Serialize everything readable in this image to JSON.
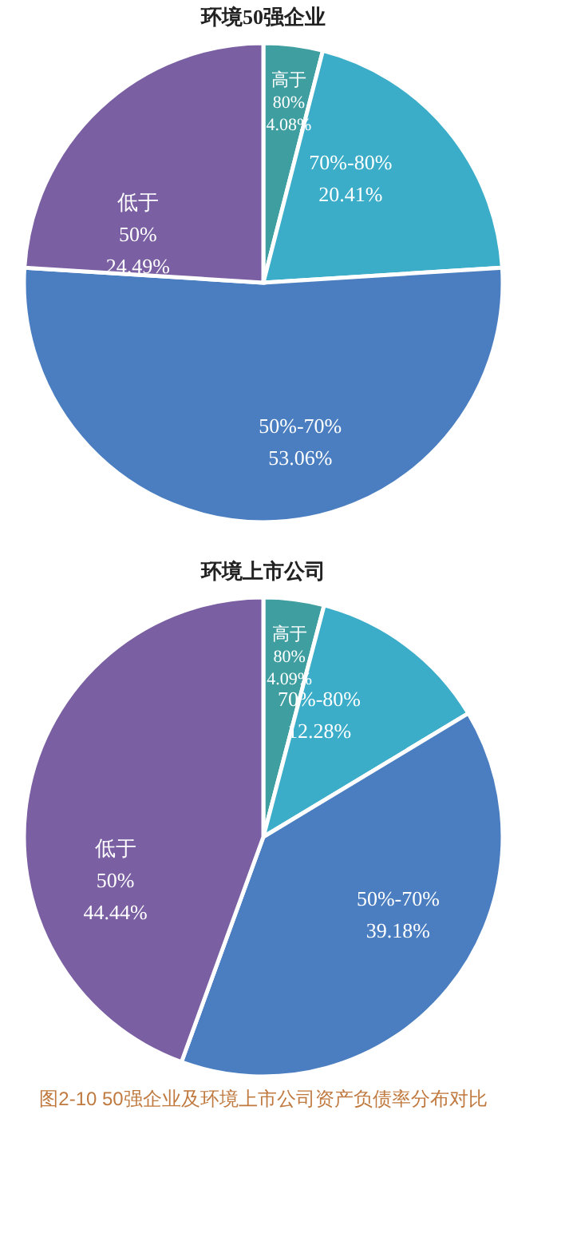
{
  "chart_data": [
    {
      "type": "pie",
      "title": "环境50强企业",
      "categories": [
        "高于80%",
        "70%-80%",
        "50%-70%",
        "低于50%"
      ],
      "values": [
        4.08,
        20.41,
        53.06,
        24.49
      ],
      "value_labels": [
        "4.08%",
        "20.41%",
        "53.06%",
        "24.49%"
      ],
      "colors": [
        "#3f9ea0",
        "#3badc9",
        "#4a7ec1",
        "#7a5fa2"
      ]
    },
    {
      "type": "pie",
      "title": "环境上市公司",
      "categories": [
        "高于80%",
        "70%-80%",
        "50%-70%",
        "低于50%"
      ],
      "values": [
        4.09,
        12.28,
        39.18,
        44.44
      ],
      "value_labels": [
        "4.09%",
        "12.28%",
        "39.18%",
        "44.44%"
      ],
      "colors": [
        "#3f9ea0",
        "#3badc9",
        "#4a7ec1",
        "#7a5fa2"
      ],
      "annotations": [
        "图2-10 50强企业及环境上市公司资产负债率分布对比"
      ]
    }
  ]
}
